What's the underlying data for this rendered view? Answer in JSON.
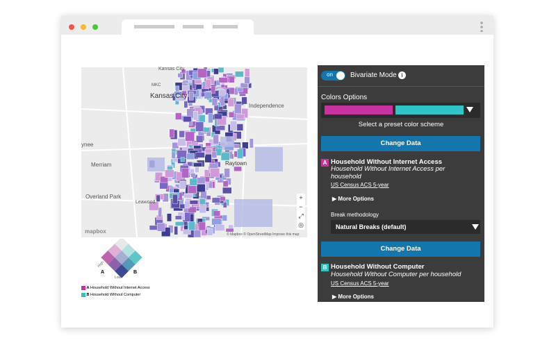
{
  "map": {
    "labels": [
      "Kansas City",
      "MKC",
      "Kansas City",
      "Independence",
      "ynee",
      "Raytown",
      "Merriam",
      "Overland Park",
      "Leawood"
    ],
    "logo": "mapbox",
    "attribution": "© Mapbox © OpenStreetMap Improve this map"
  },
  "legend": {
    "high": "High",
    "low": "Low",
    "a": "A",
    "b": "B",
    "items": [
      {
        "key": "A",
        "label": "Household Without Internet Access"
      },
      {
        "key": "B",
        "label": "Household Without Computer"
      }
    ]
  },
  "panel": {
    "toggle": "on",
    "mode": "Bivariate Mode",
    "info": "i",
    "colors_title": "Colors Options",
    "preset": "Select a preset color scheme",
    "variables": [
      {
        "button": "Change Data",
        "key": "A",
        "title": "Household Without Internet Access",
        "subtitle": "Household Without Internet Access per household",
        "source": "US Census ACS 5-year",
        "more": "More Options",
        "break_label": "Break methodology",
        "break_value": "Natural Breaks (default)"
      },
      {
        "button": "Change Data",
        "key": "B",
        "title": "Household Without Computer",
        "subtitle": "Household Without Computer per household",
        "source": "US Census ACS 5-year",
        "more": "More Options"
      }
    ]
  }
}
